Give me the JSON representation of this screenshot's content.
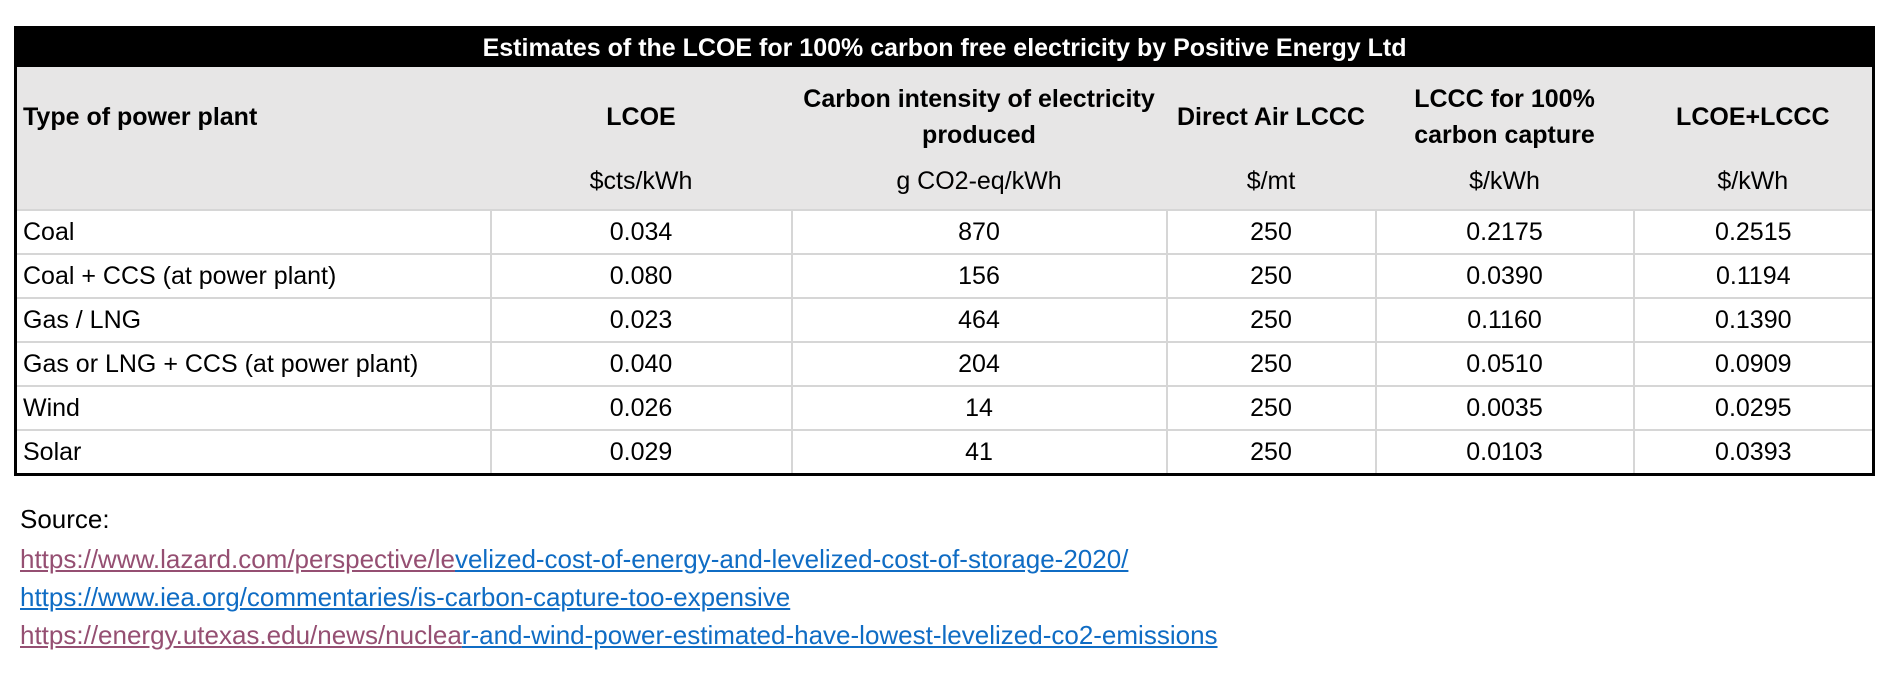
{
  "table": {
    "title": "Estimates of the LCOE for 100% carbon free electricity by Positive Energy Ltd",
    "columns": [
      {
        "label": "Type of power plant",
        "unit": ""
      },
      {
        "label": "LCOE",
        "unit": "$cts/kWh"
      },
      {
        "label": "Carbon intensity of electricity produced",
        "unit": "g CO2-eq/kWh"
      },
      {
        "label": "Direct Air LCCC",
        "unit": "$/mt"
      },
      {
        "label": "LCCC for 100% carbon capture",
        "unit": "$/kWh"
      },
      {
        "label": "LCOE+LCCC",
        "unit": "$/kWh"
      }
    ],
    "rows": [
      [
        "Coal",
        "0.034",
        "870",
        "250",
        "0.2175",
        "0.2515"
      ],
      [
        "Coal + CCS (at power plant)",
        "0.080",
        "156",
        "250",
        "0.0390",
        "0.1194"
      ],
      [
        "Gas / LNG",
        "0.023",
        "464",
        "250",
        "0.1160",
        "0.1390"
      ],
      [
        "Gas or LNG + CCS (at power plant)",
        "0.040",
        "204",
        "250",
        "0.0510",
        "0.0909"
      ],
      [
        "Wind",
        "0.026",
        "14",
        "250",
        "0.0035",
        "0.0295"
      ],
      [
        "Solar",
        "0.029",
        "41",
        "250",
        "0.0103",
        "0.0393"
      ]
    ]
  },
  "source": {
    "label": "Source:",
    "links": [
      {
        "visited_part": "https://www.lazard.com/perspective/le",
        "link_part": "velized-cost-of-energy-and-levelized-cost-of-storage-2020/"
      },
      {
        "visited_part": "",
        "link_part": "https://www.iea.org/commentaries/is-carbon-capture-too-expensive"
      },
      {
        "visited_part": "https://energy.utexas.edu/news/nuclea",
        "link_part": "r-and-wind-power-estimated-have-lowest-levelized-co2-emissions"
      }
    ]
  },
  "colors": {
    "title_bg": "#000000",
    "title_text": "#ffffff",
    "header_bg": "#e7e6e6",
    "gridline": "#d6d6d6",
    "outer_border": "#000000",
    "hyperlink_blue": "#0f6cc4",
    "hyperlink_visited_purple": "#954f72"
  },
  "chart_data": {
    "type": "table",
    "title": "Estimates of the LCOE for 100% carbon free electricity by Positive Energy Ltd",
    "columns": [
      "Type of power plant",
      "LCOE ($cts/kWh)",
      "Carbon intensity of electricity produced (g CO2-eq/kWh)",
      "Direct Air LCCC ($/mt)",
      "LCCC for 100% carbon capture ($/kWh)",
      "LCOE+LCCC ($/kWh)"
    ],
    "rows": [
      [
        "Coal",
        0.034,
        870,
        250,
        0.2175,
        0.2515
      ],
      [
        "Coal + CCS (at power plant)",
        0.08,
        156,
        250,
        0.039,
        0.1194
      ],
      [
        "Gas / LNG",
        0.023,
        464,
        250,
        0.116,
        0.139
      ],
      [
        "Gas or LNG + CCS (at power plant)",
        0.04,
        204,
        250,
        0.051,
        0.0909
      ],
      [
        "Wind",
        0.026,
        14,
        250,
        0.0035,
        0.0295
      ],
      [
        "Solar",
        0.029,
        41,
        250,
        0.0103,
        0.0393
      ]
    ]
  }
}
